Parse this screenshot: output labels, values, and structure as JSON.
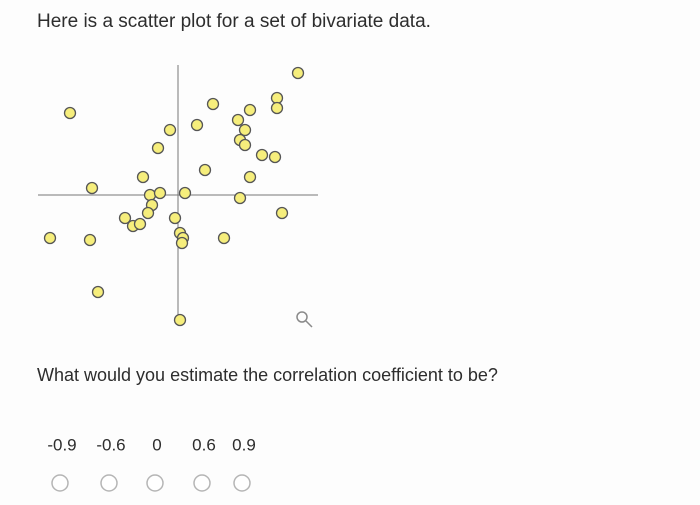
{
  "prompt": "Here is a scatter plot for a set of bivariate data.",
  "chart_data": {
    "type": "scatter",
    "x": [
      6,
      -5.4,
      1.75,
      3.6,
      4.95,
      4.95,
      0.95,
      3,
      -0.4,
      3.35,
      3.1,
      3.35,
      -1,
      4.2,
      4.85,
      1.35,
      3.6,
      -1.75,
      -4.3,
      -1.4,
      -0.9,
      0.35,
      3.1,
      5.2,
      -1.3,
      -1.5,
      -2.65,
      -2.25,
      -1.9,
      -0.15,
      0.1,
      0.25,
      0.2,
      -6.4,
      -4.4,
      2.3,
      -4,
      0.1
    ],
    "values": [
      6.1,
      4.1,
      4.55,
      4.25,
      4.85,
      4.35,
      3.5,
      3.75,
      3.25,
      3.25,
      2.75,
      2.5,
      2.35,
      2,
      1.9,
      1.25,
      0.9,
      0.9,
      0.35,
      0,
      0.1,
      0.1,
      -0.15,
      -0.9,
      -0.5,
      -0.9,
      -1.15,
      -1.55,
      -1.45,
      -1.15,
      -1.9,
      -2.15,
      -2.4,
      -2.15,
      -2.25,
      -2.15,
      -4.85,
      -6.25
    ],
    "color": "#f6ee7c",
    "xlim": [
      -7,
      7
    ],
    "ylim": [
      -6.5,
      6.5
    ]
  },
  "question": "What would you estimate the correlation coefficient to be?",
  "options": [
    "-0.9",
    "-0.6",
    "0",
    "0.6",
    "0.9"
  ]
}
